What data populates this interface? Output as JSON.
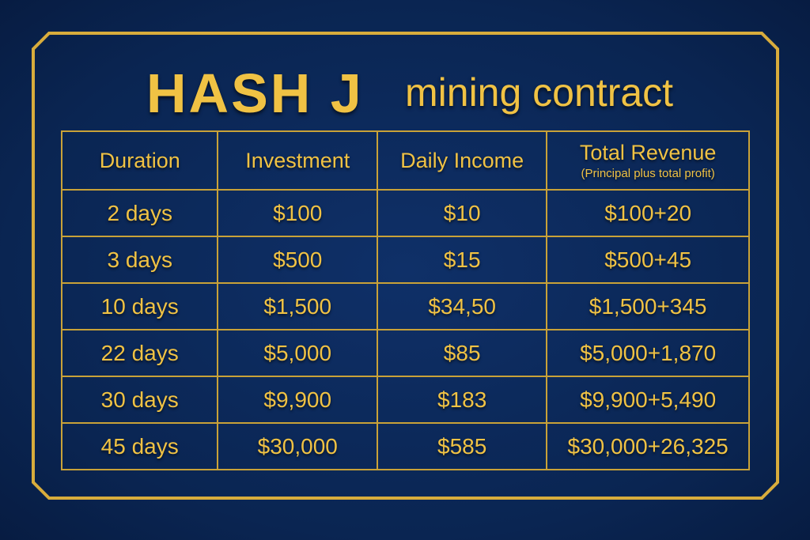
{
  "title": {
    "brand": "HASH J",
    "subtitle": "mining contract"
  },
  "colors": {
    "background": "#0c2a5c",
    "gold": "#f0c244"
  },
  "table": {
    "headers": [
      "Duration",
      "Investment",
      "Daily Income",
      "Total Revenue"
    ],
    "header_note": "(Principal plus total profit)",
    "rows": [
      [
        "2 days",
        "$100",
        "$10",
        "$100+20"
      ],
      [
        "3 days",
        "$500",
        "$15",
        "$500+45"
      ],
      [
        "10 days",
        "$1,500",
        "$34,50",
        "$1,500+345"
      ],
      [
        "22 days",
        "$5,000",
        "$85",
        "$5,000+1,870"
      ],
      [
        "30 days",
        "$9,900",
        "$183",
        "$9,900+5,490"
      ],
      [
        "45 days",
        "$30,000",
        "$585",
        "$30,000+26,325"
      ]
    ]
  }
}
